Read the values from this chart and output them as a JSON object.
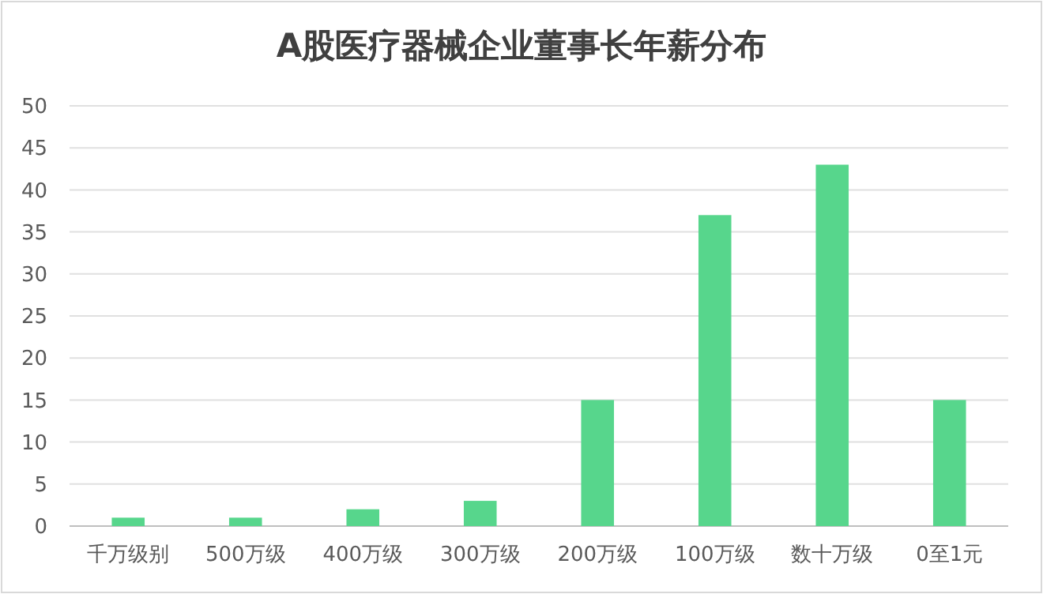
{
  "chart_data": {
    "type": "bar",
    "title": "A股医疗器械企业董事长年薪分布",
    "categories": [
      "千万级别",
      "500万级",
      "400万级",
      "300万级",
      "200万级",
      "100万级",
      "数十万级",
      "0至1元"
    ],
    "values": [
      1,
      1,
      2,
      3,
      15,
      37,
      43,
      15
    ],
    "color": "#57d68c",
    "ylim": [
      0,
      50
    ],
    "yticks": [
      0,
      5,
      10,
      15,
      20,
      25,
      30,
      35,
      40,
      45,
      50
    ],
    "grid": "y"
  }
}
